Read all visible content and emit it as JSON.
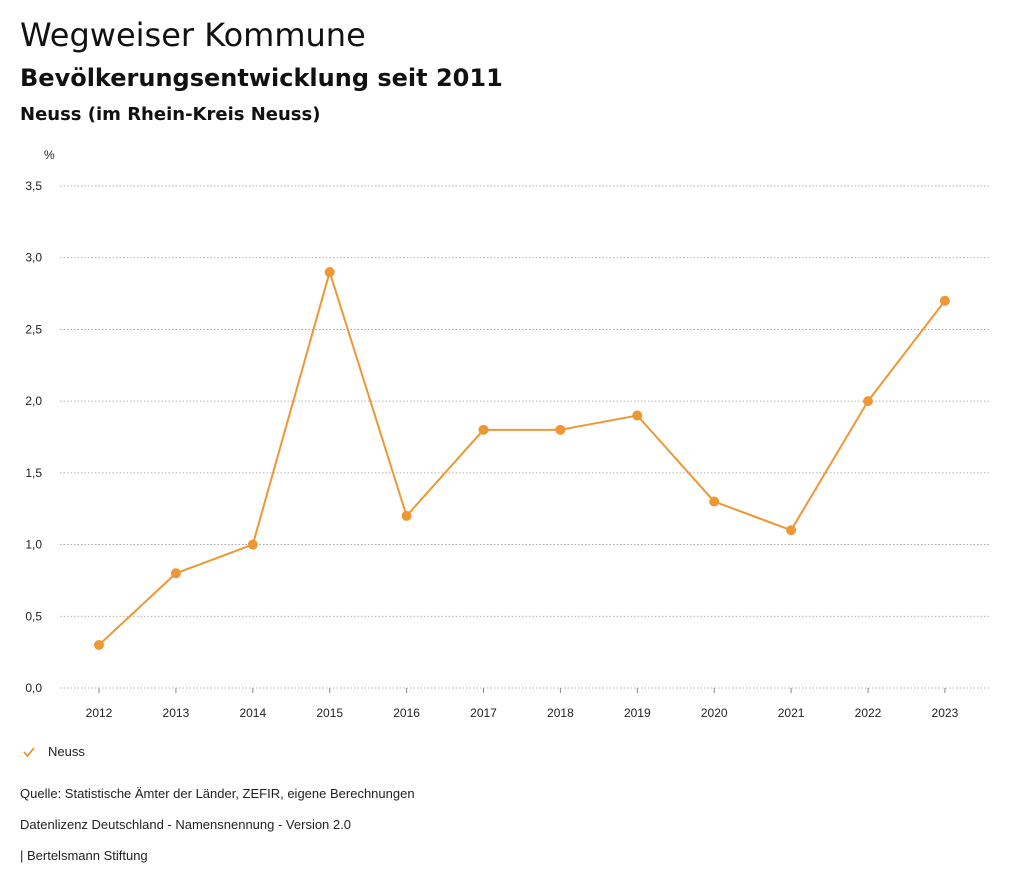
{
  "header": {
    "title": "Wegweiser Kommune",
    "subtitle": "Bevölkerungsentwicklung seit 2011",
    "region": "Neuss (im Rhein-Kreis Neuss)"
  },
  "colors": {
    "series": "#ee9734",
    "grid": "#9a9a9a",
    "axis_text": "#222222"
  },
  "chart_data": {
    "type": "line",
    "title": "Bevölkerungsentwicklung seit 2011",
    "ylabel": "%",
    "xlabel": "",
    "categories": [
      "2012",
      "2013",
      "2014",
      "2015",
      "2016",
      "2017",
      "2018",
      "2019",
      "2020",
      "2021",
      "2022",
      "2023"
    ],
    "series": [
      {
        "name": "Neuss",
        "values": [
          0.3,
          0.8,
          1.0,
          2.9,
          1.2,
          1.8,
          1.8,
          1.9,
          1.3,
          1.1,
          2.0,
          2.7
        ]
      }
    ],
    "ylim": [
      0,
      3.5
    ],
    "yticks": [
      0,
      0.5,
      1.0,
      1.5,
      2.0,
      2.5,
      3.0,
      3.5
    ],
    "ytick_labels": [
      "0,0",
      "0,5",
      "1,0",
      "1,5",
      "2,0",
      "2,5",
      "3,0",
      "3,5"
    ],
    "grid": true,
    "legend": "bottom-left"
  },
  "legend": {
    "label": "Neuss"
  },
  "footer": {
    "source": "Quelle: Statistische Ämter der Länder, ZEFIR, eigene Berechnungen",
    "license": "Datenlizenz Deutschland - Namensnennung - Version 2.0",
    "publisher": "| Bertelsmann Stiftung"
  }
}
